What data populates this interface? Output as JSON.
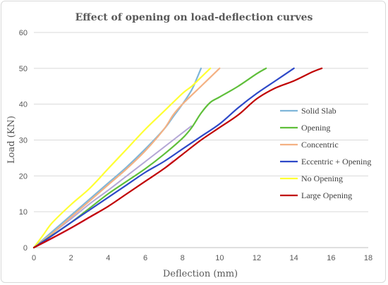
{
  "chart_data": {
    "type": "line",
    "title": "Effect of opening on load-deflection curves",
    "xlabel": "Deflection (mm)",
    "ylabel": "Load (KN)",
    "xlim": [
      0,
      18
    ],
    "ylim": [
      0,
      60
    ],
    "xticks": [
      0,
      2,
      4,
      6,
      8,
      10,
      12,
      14,
      16,
      18
    ],
    "yticks": [
      0,
      10,
      20,
      30,
      40,
      50,
      60
    ],
    "grid": "horizontal",
    "legend_position": "right",
    "series": [
      {
        "name": "Solid Slab",
        "color": "#7fb6d9",
        "points": [
          [
            0,
            0
          ],
          [
            1,
            4.5
          ],
          [
            2,
            9
          ],
          [
            3,
            13.5
          ],
          [
            4,
            18
          ],
          [
            5,
            22.5
          ],
          [
            6,
            27.5
          ],
          [
            7,
            33
          ],
          [
            7.5,
            36.5
          ],
          [
            8,
            40
          ],
          [
            8.5,
            44
          ],
          [
            8.8,
            47.5
          ],
          [
            9,
            50
          ]
        ]
      },
      {
        "name": "Opening",
        "color": "#5fbf3a",
        "points": [
          [
            0,
            0
          ],
          [
            1,
            3.5
          ],
          [
            2,
            7
          ],
          [
            3,
            11
          ],
          [
            4,
            15
          ],
          [
            5,
            18.5
          ],
          [
            6,
            22
          ],
          [
            7,
            26
          ],
          [
            8,
            30.5
          ],
          [
            8.5,
            33.5
          ],
          [
            9,
            37.5
          ],
          [
            9.5,
            40.5
          ],
          [
            10,
            42
          ],
          [
            11,
            45
          ],
          [
            12,
            48.5
          ],
          [
            12.5,
            50
          ]
        ]
      },
      {
        "name": "Concentric",
        "color": "#f4b183",
        "points": [
          [
            0,
            0
          ],
          [
            1,
            4
          ],
          [
            2,
            8.5
          ],
          [
            3,
            13
          ],
          [
            4,
            17.5
          ],
          [
            5,
            22
          ],
          [
            6,
            27
          ],
          [
            7,
            33
          ],
          [
            7.5,
            37
          ],
          [
            8,
            40
          ],
          [
            9,
            45
          ],
          [
            10,
            50
          ]
        ]
      },
      {
        "name": "Eccentric + Opening",
        "color": "#2e49c8",
        "points": [
          [
            0,
            0
          ],
          [
            1,
            3.4
          ],
          [
            2,
            7
          ],
          [
            3,
            10.5
          ],
          [
            4,
            14
          ],
          [
            5,
            17.5
          ],
          [
            6,
            21
          ],
          [
            7,
            24
          ],
          [
            8,
            27.5
          ],
          [
            9,
            31
          ],
          [
            10,
            34.5
          ],
          [
            11,
            39
          ],
          [
            12,
            43
          ],
          [
            13,
            46.5
          ],
          [
            14,
            50
          ]
        ]
      },
      {
        "name": "No Opening",
        "color": "#ffff33",
        "points": [
          [
            0,
            0
          ],
          [
            0.5,
            3.5
          ],
          [
            1,
            7
          ],
          [
            2,
            12
          ],
          [
            3,
            16.5
          ],
          [
            4,
            22
          ],
          [
            5,
            27.5
          ],
          [
            6,
            33
          ],
          [
            7,
            38
          ],
          [
            8,
            43
          ],
          [
            8.5,
            45
          ],
          [
            9,
            47.5
          ],
          [
            9.5,
            50
          ]
        ]
      },
      {
        "name": "Large Opening",
        "color": "#c00000",
        "points": [
          [
            0,
            0
          ],
          [
            1,
            2.7
          ],
          [
            2,
            5.5
          ],
          [
            3,
            8.5
          ],
          [
            4,
            11.5
          ],
          [
            5,
            15
          ],
          [
            6,
            18.5
          ],
          [
            7,
            22
          ],
          [
            8,
            26
          ],
          [
            9,
            30
          ],
          [
            10,
            33.5
          ],
          [
            11,
            37
          ],
          [
            12,
            41.5
          ],
          [
            13,
            44.5
          ],
          [
            14,
            46.5
          ],
          [
            15,
            49
          ],
          [
            15.5,
            50
          ]
        ]
      }
    ],
    "extra_lines": [
      {
        "color": "#b4a7d6",
        "points": [
          [
            0,
            0
          ],
          [
            1,
            4
          ],
          [
            2,
            8
          ],
          [
            3,
            12.2
          ],
          [
            4,
            16
          ],
          [
            5,
            20
          ],
          [
            6,
            24
          ],
          [
            7,
            28
          ],
          [
            8,
            32
          ],
          [
            8.5,
            34
          ]
        ]
      },
      {
        "color": "#ffc7ef",
        "points": [
          [
            0,
            0
          ],
          [
            1,
            2.5
          ],
          [
            2,
            5.3
          ],
          [
            3,
            8.3
          ],
          [
            4,
            11.5
          ],
          [
            5,
            15
          ],
          [
            6,
            18.5
          ],
          [
            7,
            22
          ],
          [
            7.5,
            24.5
          ]
        ]
      }
    ]
  }
}
